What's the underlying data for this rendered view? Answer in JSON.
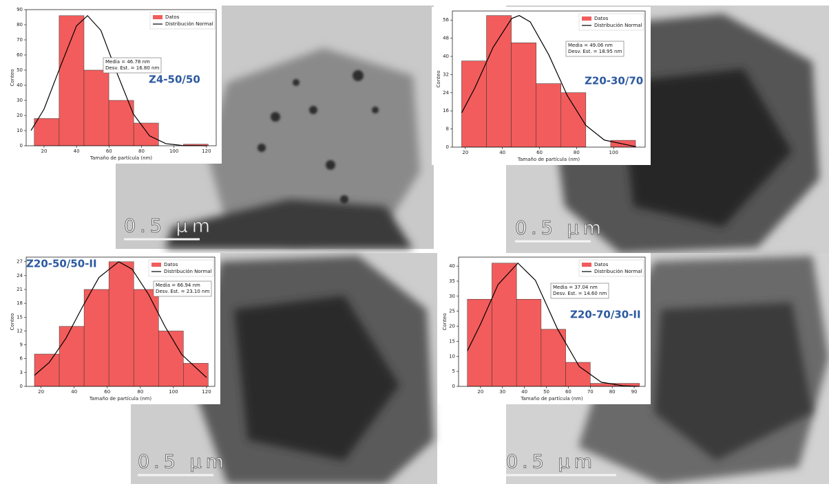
{
  "chart_data": [
    {
      "type": "histogram",
      "sample_label": "Z4-50/50",
      "scale_bar": "0.5 µm",
      "xlabel": "Tamaño de partícula (nm)",
      "ylabel": "Conteo",
      "annotation": [
        "Media = 46.78 nm",
        "Desv. Est. = 16.80 nm"
      ],
      "xlim": [
        9,
        126
      ],
      "ylim": [
        0,
        90
      ],
      "xticks": [
        20,
        40,
        60,
        80,
        100,
        120
      ],
      "yticks": [
        0,
        10,
        20,
        30,
        40,
        50,
        60,
        70,
        80,
        90
      ],
      "series": [
        {
          "name": "Datos",
          "color": "#f25c5c",
          "bins": [
            14,
            29.3,
            44.6,
            59.9,
            75.2,
            90.5,
            105.8,
            121.1
          ],
          "values": [
            18,
            86,
            50,
            30,
            15,
            0,
            1
          ]
        },
        {
          "name": "Distribución Normal",
          "color": "#000000",
          "x": [
            12,
            20,
            30,
            40,
            46.78,
            55,
            65,
            75,
            85,
            95,
            105,
            120
          ],
          "values": [
            10.1,
            24.2,
            52.2,
            79.3,
            86,
            76.3,
            47.8,
            21.0,
            6.5,
            1.4,
            0.2,
            0
          ]
        }
      ]
    },
    {
      "type": "histogram",
      "sample_label": "Z20-30/70",
      "scale_bar": "0.5 µm",
      "xlabel": "Tamaño de partícula (nm)",
      "ylabel": "Conteo",
      "annotation": [
        "Media = 49.06 nm",
        "Desv. Est. = 18.95 nm"
      ],
      "xlim": [
        13,
        117
      ],
      "ylim": [
        0,
        60
      ],
      "xticks": [
        20,
        40,
        60,
        80,
        100
      ],
      "yticks": [
        0,
        8,
        16,
        24,
        32,
        40,
        48,
        56
      ],
      "series": [
        {
          "name": "Datos",
          "color": "#f25c5c",
          "bins": [
            18,
            31.4,
            44.8,
            58.2,
            71.6,
            85,
            98.4,
            111.8
          ],
          "values": [
            38,
            58,
            46,
            28,
            24,
            0,
            3
          ]
        },
        {
          "name": "Distribución Normal",
          "color": "#000000",
          "x": [
            18,
            25,
            35,
            45,
            49.06,
            55,
            65,
            75,
            85,
            95,
            112
          ],
          "values": [
            15.1,
            25.9,
            44.0,
            56.7,
            58,
            55.2,
            40.7,
            22.7,
            9.6,
            3.1,
            0.2
          ]
        }
      ]
    },
    {
      "type": "histogram",
      "sample_label": "Z20-50/50-II",
      "scale_bar": "0.5 µm",
      "xlabel": "Tamaño de partícula (nm)",
      "ylabel": "Conteo",
      "annotation": [
        "Media = 66.94 nm",
        "Desv. Est. = 23.10 nm"
      ],
      "xlim": [
        11,
        125
      ],
      "ylim": [
        0,
        28
      ],
      "xticks": [
        20,
        40,
        60,
        80,
        100,
        120
      ],
      "yticks": [
        0,
        3,
        6,
        9,
        12,
        15,
        18,
        21,
        24,
        27
      ],
      "series": [
        {
          "name": "Datos",
          "color": "#f25c5c",
          "bins": [
            16,
            31,
            46,
            61,
            76,
            91,
            106,
            121
          ],
          "values": [
            7,
            13,
            21,
            27,
            21,
            12,
            5
          ]
        },
        {
          "name": "Distribución Normal",
          "color": "#000000",
          "x": [
            16,
            25,
            35,
            45,
            55,
            66.94,
            75,
            85,
            95,
            105,
            120
          ],
          "values": [
            2.4,
            5.2,
            10.4,
            17.2,
            23.6,
            27,
            25.4,
            19.9,
            12.9,
            6.9,
            1.9
          ]
        }
      ]
    },
    {
      "type": "histogram",
      "sample_label": "Z20-70/30-II",
      "scale_bar": "0.5 µm",
      "xlabel": "Tamaño de partícula (nm)",
      "ylabel": "Conteo",
      "annotation": [
        "Media = 37.04 nm",
        "Desv. Est. = 14.60 nm"
      ],
      "xlim": [
        10,
        95
      ],
      "ylim": [
        0,
        43
      ],
      "xticks": [
        20,
        30,
        40,
        50,
        60,
        70,
        80,
        90
      ],
      "yticks": [
        0,
        5,
        10,
        15,
        20,
        25,
        30,
        35,
        40
      ],
      "series": [
        {
          "name": "Datos",
          "color": "#f25c5c",
          "bins": [
            14,
            25.2,
            36.4,
            47.6,
            58.8,
            70,
            81.2,
            92.4
          ],
          "values": [
            29,
            41,
            29,
            19,
            8,
            1,
            1
          ]
        },
        {
          "name": "Distribución Normal",
          "color": "#000000",
          "x": [
            14,
            20,
            28,
            37.04,
            45,
            55,
            65,
            75,
            85,
            92
          ],
          "values": [
            11.8,
            20.7,
            33.9,
            41,
            35.3,
            19.2,
            6.6,
            1.4,
            0.2,
            0
          ]
        }
      ]
    }
  ]
}
